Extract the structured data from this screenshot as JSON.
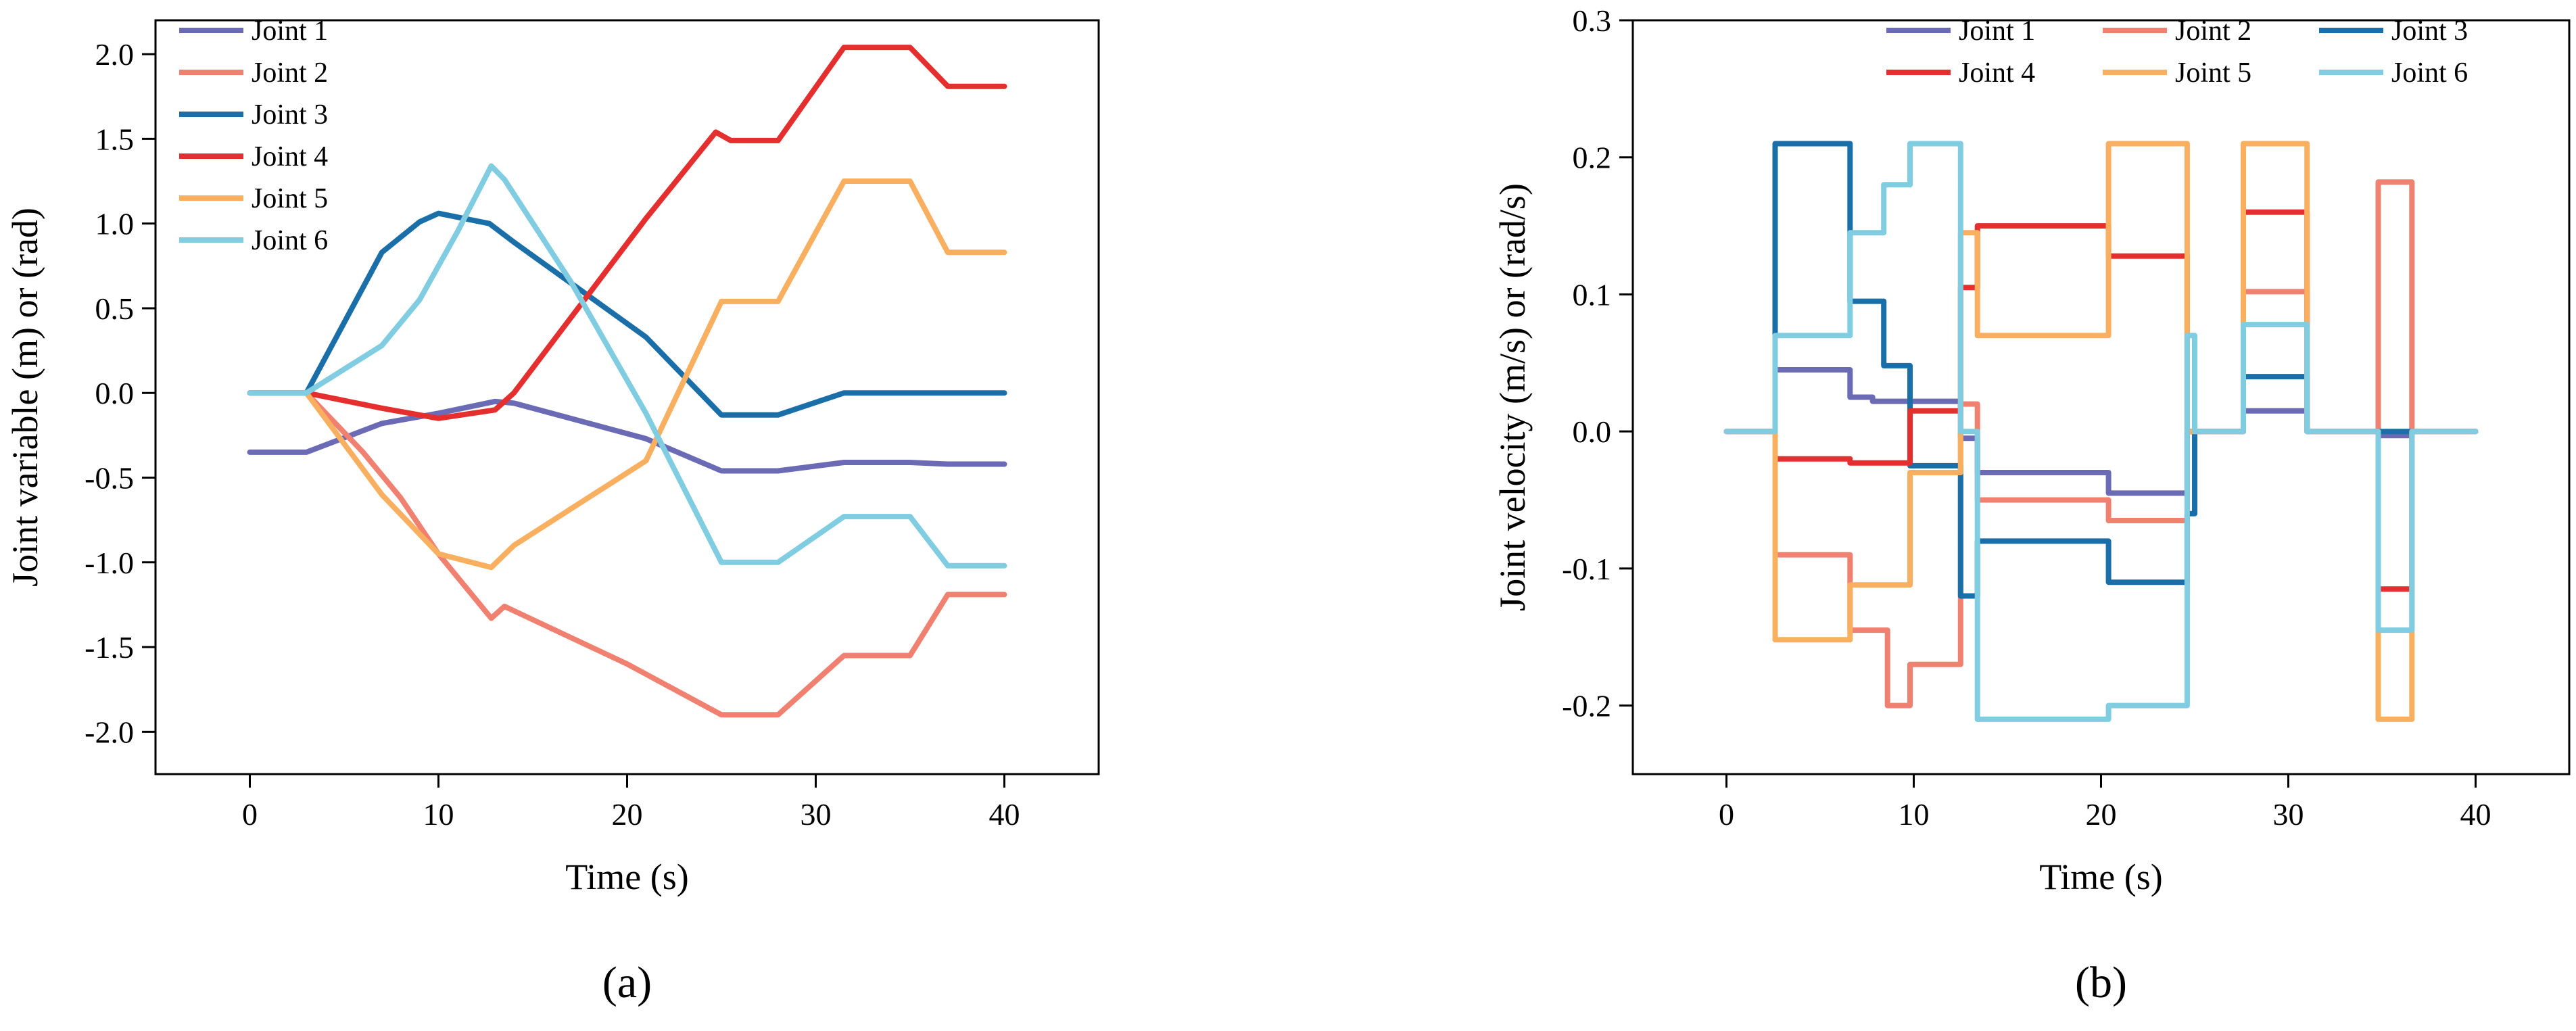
{
  "chart_data": [
    {
      "type": "line",
      "panel_label": "(a)",
      "xlabel": "Time (s)",
      "ylabel": "Joint variable (m) or (rad)",
      "xlim": [
        -5,
        45
      ],
      "ylim": [
        -2.25,
        2.2
      ],
      "xticks": [
        0,
        10,
        20,
        30,
        40
      ],
      "yticks": [
        -2.0,
        -1.5,
        -1.0,
        -0.5,
        0.0,
        0.5,
        1.0,
        1.5,
        2.0
      ],
      "ytick_labels": [
        "-2.0",
        "-1.5",
        "-1.0",
        "-0.5",
        "0.0",
        "0.5",
        "1.0",
        "1.5",
        "2.0"
      ],
      "legend_position": "top-left",
      "series": [
        {
          "name": "Joint 1",
          "color": "#6a6ab5",
          "points": [
            [
              0,
              -0.35
            ],
            [
              3,
              -0.35
            ],
            [
              7,
              -0.18
            ],
            [
              10,
              -0.12
            ],
            [
              13,
              -0.05
            ],
            [
              14,
              -0.06
            ],
            [
              21,
              -0.27
            ],
            [
              25,
              -0.46
            ],
            [
              28,
              -0.46
            ],
            [
              31.5,
              -0.41
            ],
            [
              35,
              -0.41
            ],
            [
              37,
              -0.42
            ],
            [
              40,
              -0.42
            ]
          ]
        },
        {
          "name": "Joint 2",
          "color": "#f08070",
          "points": [
            [
              0,
              0.0
            ],
            [
              3,
              0.0
            ],
            [
              6,
              -0.35
            ],
            [
              8,
              -0.62
            ],
            [
              10,
              -0.95
            ],
            [
              12.8,
              -1.33
            ],
            [
              13.5,
              -1.26
            ],
            [
              20,
              -1.6
            ],
            [
              25,
              -1.9
            ],
            [
              28,
              -1.9
            ],
            [
              31.5,
              -1.55
            ],
            [
              35,
              -1.55
            ],
            [
              37,
              -1.19
            ],
            [
              40,
              -1.19
            ]
          ]
        },
        {
          "name": "Joint 3",
          "color": "#1a6fa8",
          "points": [
            [
              0,
              0.0
            ],
            [
              3,
              0.0
            ],
            [
              7,
              0.83
            ],
            [
              9,
              1.01
            ],
            [
              10,
              1.06
            ],
            [
              12.7,
              1.0
            ],
            [
              14,
              0.89
            ],
            [
              21,
              0.33
            ],
            [
              25,
              -0.13
            ],
            [
              28,
              -0.13
            ],
            [
              31.5,
              0.0
            ],
            [
              35,
              0.0
            ],
            [
              40,
              0.0
            ]
          ]
        },
        {
          "name": "Joint 4",
          "color": "#e52e2e",
          "points": [
            [
              0,
              0.0
            ],
            [
              3,
              0.0
            ],
            [
              7,
              -0.09
            ],
            [
              10,
              -0.15
            ],
            [
              13,
              -0.1
            ],
            [
              14,
              0.0
            ],
            [
              21,
              1.03
            ],
            [
              24.7,
              1.54
            ],
            [
              25.5,
              1.49
            ],
            [
              28,
              1.49
            ],
            [
              31.5,
              2.04
            ],
            [
              35,
              2.04
            ],
            [
              37,
              1.81
            ],
            [
              40,
              1.81
            ]
          ]
        },
        {
          "name": "Joint 5",
          "color": "#f8b060",
          "points": [
            [
              0,
              0.0
            ],
            [
              3,
              0.0
            ],
            [
              7,
              -0.6
            ],
            [
              10,
              -0.95
            ],
            [
              12.8,
              -1.03
            ],
            [
              14,
              -0.9
            ],
            [
              21,
              -0.4
            ],
            [
              25,
              0.54
            ],
            [
              28,
              0.54
            ],
            [
              31.5,
              1.25
            ],
            [
              35,
              1.25
            ],
            [
              37,
              0.83
            ],
            [
              40,
              0.83
            ]
          ]
        },
        {
          "name": "Joint 6",
          "color": "#80cce0",
          "points": [
            [
              0,
              0.0
            ],
            [
              3,
              0.0
            ],
            [
              7,
              0.28
            ],
            [
              9,
              0.55
            ],
            [
              11,
              0.95
            ],
            [
              12.8,
              1.34
            ],
            [
              13.5,
              1.26
            ],
            [
              17,
              0.66
            ],
            [
              21,
              -0.12
            ],
            [
              25,
              -1.0
            ],
            [
              28,
              -1.0
            ],
            [
              31.5,
              -0.73
            ],
            [
              35,
              -0.73
            ],
            [
              37,
              -1.02
            ],
            [
              40,
              -1.02
            ]
          ]
        }
      ]
    },
    {
      "type": "line",
      "panel_label": "(b)",
      "xlabel": "Time (s)",
      "ylabel": "Joint velocity (m/s) or (rad/s)",
      "xlim": [
        -5,
        45
      ],
      "ylim": [
        -0.25,
        0.3
      ],
      "xticks": [
        0,
        10,
        20,
        30,
        40
      ],
      "yticks": [
        -0.2,
        -0.1,
        0.0,
        0.1,
        0.2,
        0.3
      ],
      "ytick_labels": [
        "-0.2",
        "-0.1",
        "0.0",
        "0.1",
        "0.2",
        "0.3"
      ],
      "legend_position": "top",
      "series": [
        {
          "name": "Joint 1",
          "color": "#6a6ab5",
          "points": [
            [
              0,
              0
            ],
            [
              2.6,
              0
            ],
            [
              2.6,
              0.045
            ],
            [
              6.6,
              0.045
            ],
            [
              6.6,
              0.025
            ],
            [
              7.8,
              0.025
            ],
            [
              7.8,
              0.022
            ],
            [
              12.5,
              0.022
            ],
            [
              12.5,
              -0.005
            ],
            [
              13.4,
              -0.005
            ],
            [
              13.4,
              -0.03
            ],
            [
              20.4,
              -0.03
            ],
            [
              20.4,
              -0.045
            ],
            [
              24.6,
              -0.045
            ],
            [
              24.6,
              0
            ],
            [
              27.6,
              0
            ],
            [
              27.6,
              0.015
            ],
            [
              31,
              0.015
            ],
            [
              31,
              0
            ],
            [
              34.8,
              0
            ],
            [
              34.8,
              -0.003
            ],
            [
              36.6,
              -0.003
            ],
            [
              36.6,
              0
            ],
            [
              40,
              0
            ]
          ]
        },
        {
          "name": "Joint 2",
          "color": "#f08070",
          "points": [
            [
              0,
              0
            ],
            [
              2.6,
              0
            ],
            [
              2.6,
              -0.09
            ],
            [
              6.6,
              -0.09
            ],
            [
              6.6,
              -0.145
            ],
            [
              8.6,
              -0.145
            ],
            [
              8.6,
              -0.2
            ],
            [
              9.8,
              -0.2
            ],
            [
              9.8,
              -0.17
            ],
            [
              12.5,
              -0.17
            ],
            [
              12.5,
              0.02
            ],
            [
              13.4,
              0.02
            ],
            [
              13.4,
              -0.05
            ],
            [
              20.4,
              -0.05
            ],
            [
              20.4,
              -0.065
            ],
            [
              24.6,
              -0.065
            ],
            [
              24.6,
              0
            ],
            [
              27.6,
              0
            ],
            [
              27.6,
              0.102
            ],
            [
              31,
              0.102
            ],
            [
              31,
              0
            ],
            [
              34.8,
              0
            ],
            [
              34.8,
              0.182
            ],
            [
              36.6,
              0.182
            ],
            [
              36.6,
              0
            ],
            [
              40,
              0
            ]
          ]
        },
        {
          "name": "Joint 3",
          "color": "#1a6fa8",
          "points": [
            [
              0,
              0
            ],
            [
              2.6,
              0
            ],
            [
              2.6,
              0.21
            ],
            [
              6.6,
              0.21
            ],
            [
              6.6,
              0.095
            ],
            [
              8.4,
              0.095
            ],
            [
              8.4,
              0.048
            ],
            [
              9.8,
              0.048
            ],
            [
              9.8,
              -0.025
            ],
            [
              12.5,
              -0.025
            ],
            [
              12.5,
              -0.12
            ],
            [
              13.4,
              -0.12
            ],
            [
              13.4,
              -0.08
            ],
            [
              20.4,
              -0.08
            ],
            [
              20.4,
              -0.11
            ],
            [
              24.6,
              -0.11
            ],
            [
              24.6,
              -0.06
            ],
            [
              25,
              -0.06
            ],
            [
              25,
              0
            ],
            [
              27.6,
              0
            ],
            [
              27.6,
              0.04
            ],
            [
              31,
              0.04
            ],
            [
              31,
              0
            ],
            [
              34.8,
              0
            ],
            [
              34.8,
              0
            ],
            [
              40,
              0
            ]
          ]
        },
        {
          "name": "Joint 4",
          "color": "#e52e2e",
          "points": [
            [
              0,
              0
            ],
            [
              2.6,
              0
            ],
            [
              2.6,
              -0.02
            ],
            [
              6.6,
              -0.02
            ],
            [
              6.6,
              -0.023
            ],
            [
              9.8,
              -0.023
            ],
            [
              9.8,
              0.015
            ],
            [
              12.5,
              0.015
            ],
            [
              12.5,
              0.105
            ],
            [
              13.4,
              0.105
            ],
            [
              13.4,
              0.15
            ],
            [
              20.4,
              0.15
            ],
            [
              20.4,
              0.128
            ],
            [
              24.6,
              0.128
            ],
            [
              24.6,
              0
            ],
            [
              27.6,
              0
            ],
            [
              27.6,
              0.16
            ],
            [
              31,
              0.16
            ],
            [
              31,
              0
            ],
            [
              34.8,
              0
            ],
            [
              34.8,
              -0.115
            ],
            [
              36.6,
              -0.115
            ],
            [
              36.6,
              0
            ],
            [
              40,
              0
            ]
          ]
        },
        {
          "name": "Joint 5",
          "color": "#f8b060",
          "points": [
            [
              0,
              0
            ],
            [
              2.6,
              0
            ],
            [
              2.6,
              -0.152
            ],
            [
              6.6,
              -0.152
            ],
            [
              6.6,
              -0.112
            ],
            [
              9.8,
              -0.112
            ],
            [
              9.8,
              -0.03
            ],
            [
              12.5,
              -0.03
            ],
            [
              12.5,
              0.145
            ],
            [
              13.4,
              0.145
            ],
            [
              13.4,
              0.07
            ],
            [
              20.4,
              0.07
            ],
            [
              20.4,
              0.21
            ],
            [
              24.6,
              0.21
            ],
            [
              24.6,
              0
            ],
            [
              27.6,
              0
            ],
            [
              27.6,
              0.21
            ],
            [
              31,
              0.21
            ],
            [
              31,
              0
            ],
            [
              34.8,
              0
            ],
            [
              34.8,
              -0.21
            ],
            [
              36.6,
              -0.21
            ],
            [
              36.6,
              0
            ],
            [
              40,
              0
            ]
          ]
        },
        {
          "name": "Joint 6",
          "color": "#80cce0",
          "points": [
            [
              0,
              0
            ],
            [
              2.6,
              0
            ],
            [
              2.6,
              0.07
            ],
            [
              6.6,
              0.07
            ],
            [
              6.6,
              0.145
            ],
            [
              8.4,
              0.145
            ],
            [
              8.4,
              0.18
            ],
            [
              9.8,
              0.18
            ],
            [
              9.8,
              0.21
            ],
            [
              12.5,
              0.21
            ],
            [
              12.5,
              0.0
            ],
            [
              13.4,
              0.0
            ],
            [
              13.4,
              -0.21
            ],
            [
              20.4,
              -0.21
            ],
            [
              20.4,
              -0.2
            ],
            [
              24.6,
              -0.2
            ],
            [
              24.6,
              0.07
            ],
            [
              25,
              0.07
            ],
            [
              25,
              0
            ],
            [
              27.6,
              0
            ],
            [
              27.6,
              0.078
            ],
            [
              31,
              0.078
            ],
            [
              31,
              0
            ],
            [
              34.8,
              0
            ],
            [
              34.8,
              -0.145
            ],
            [
              36.6,
              -0.145
            ],
            [
              36.6,
              0
            ],
            [
              40,
              0
            ]
          ]
        }
      ]
    }
  ]
}
